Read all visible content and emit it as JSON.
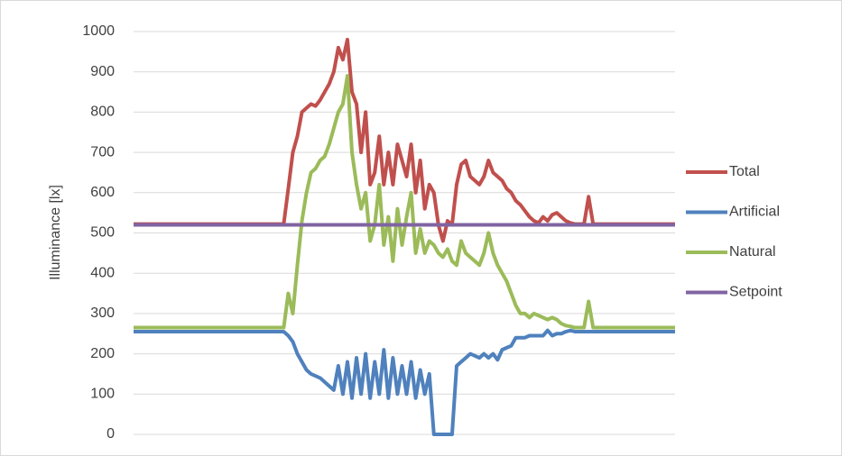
{
  "chart_data": {
    "type": "line",
    "ylabel": "Illuminance [lx]",
    "ylim": [
      0,
      1000
    ],
    "yticks": [
      0,
      100,
      200,
      300,
      400,
      500,
      600,
      700,
      800,
      900,
      1000
    ],
    "grid": true,
    "legend": "right",
    "categories": [
      null,
      null,
      null,
      null,
      null,
      null,
      null,
      null,
      null,
      null,
      null,
      null,
      null,
      null,
      null,
      null,
      null,
      null,
      null,
      null,
      null,
      null,
      null,
      null,
      null,
      null,
      null,
      null,
      null,
      null,
      null,
      null,
      null,
      null,
      null,
      null,
      null,
      null,
      null,
      null,
      null,
      null,
      null,
      null,
      null,
      null,
      null,
      null,
      null,
      null,
      null,
      null,
      null,
      null,
      null,
      null,
      null,
      null,
      null,
      null,
      null,
      null,
      null,
      null,
      null,
      null,
      null,
      null,
      null,
      null,
      null,
      null,
      null,
      null,
      null,
      null,
      null,
      null,
      null,
      null,
      null,
      null,
      null,
      null,
      null,
      null,
      null,
      null,
      null,
      null,
      null,
      null,
      null,
      null,
      null,
      null,
      null,
      null,
      null,
      null,
      null,
      null,
      null,
      null,
      null,
      null,
      null,
      null,
      null,
      null,
      null,
      null,
      null,
      null,
      null,
      null,
      null,
      null,
      null,
      null
    ],
    "series": [
      {
        "name": "Total",
        "color": "#c0504d",
        "values": [
          522,
          522,
          522,
          522,
          522,
          522,
          522,
          522,
          522,
          522,
          522,
          522,
          522,
          522,
          522,
          522,
          522,
          522,
          522,
          522,
          522,
          522,
          522,
          522,
          522,
          522,
          522,
          522,
          522,
          522,
          522,
          522,
          522,
          522,
          610,
          700,
          740,
          800,
          810,
          820,
          815,
          830,
          850,
          870,
          900,
          960,
          930,
          980,
          850,
          820,
          700,
          800,
          620,
          650,
          740,
          620,
          700,
          620,
          720,
          680,
          640,
          720,
          600,
          680,
          560,
          620,
          600,
          520,
          480,
          530,
          520,
          620,
          670,
          680,
          640,
          630,
          620,
          640,
          680,
          650,
          640,
          630,
          610,
          600,
          580,
          570,
          555,
          540,
          530,
          525,
          540,
          530,
          545,
          550,
          540,
          530,
          525,
          522,
          522,
          522,
          590,
          522,
          522,
          522,
          522,
          522,
          522,
          522,
          522,
          522,
          522,
          522,
          522,
          522,
          522,
          522,
          522,
          522,
          522,
          522
        ]
      },
      {
        "name": "Artificial",
        "color": "#4f81bd",
        "values": [
          255,
          255,
          255,
          255,
          255,
          255,
          255,
          255,
          255,
          255,
          255,
          255,
          255,
          255,
          255,
          255,
          255,
          255,
          255,
          255,
          255,
          255,
          255,
          255,
          255,
          255,
          255,
          255,
          255,
          255,
          255,
          255,
          255,
          255,
          245,
          230,
          200,
          180,
          160,
          150,
          145,
          140,
          130,
          120,
          110,
          170,
          100,
          180,
          90,
          190,
          100,
          200,
          90,
          180,
          100,
          210,
          90,
          190,
          100,
          170,
          100,
          180,
          90,
          160,
          100,
          150,
          0,
          0,
          0,
          0,
          0,
          170,
          180,
          190,
          200,
          195,
          190,
          200,
          190,
          200,
          185,
          210,
          215,
          220,
          240,
          240,
          240,
          245,
          245,
          245,
          245,
          258,
          245,
          250,
          250,
          255,
          258,
          255,
          255,
          255,
          255,
          255,
          255,
          255,
          255,
          255,
          255,
          255,
          255,
          255,
          255,
          255,
          255,
          255,
          255,
          255,
          255,
          255,
          255,
          255
        ]
      },
      {
        "name": "Natural",
        "color": "#9bbb59",
        "values": [
          265,
          265,
          265,
          265,
          265,
          265,
          265,
          265,
          265,
          265,
          265,
          265,
          265,
          265,
          265,
          265,
          265,
          265,
          265,
          265,
          265,
          265,
          265,
          265,
          265,
          265,
          265,
          265,
          265,
          265,
          265,
          265,
          265,
          265,
          350,
          300,
          420,
          530,
          600,
          650,
          660,
          680,
          690,
          720,
          760,
          800,
          820,
          890,
          700,
          620,
          560,
          600,
          480,
          520,
          620,
          470,
          540,
          430,
          560,
          470,
          540,
          600,
          450,
          510,
          450,
          480,
          470,
          450,
          440,
          460,
          430,
          420,
          480,
          450,
          440,
          430,
          420,
          450,
          500,
          450,
          420,
          400,
          380,
          350,
          320,
          300,
          300,
          290,
          300,
          295,
          290,
          285,
          290,
          285,
          275,
          270,
          268,
          265,
          265,
          265,
          330,
          265,
          265,
          265,
          265,
          265,
          265,
          265,
          265,
          265,
          265,
          265,
          265,
          265,
          265,
          265,
          265,
          265,
          265,
          265
        ]
      },
      {
        "name": "Setpoint",
        "color": "#8064a2",
        "values": [
          520,
          520,
          520,
          520,
          520,
          520,
          520,
          520,
          520,
          520,
          520,
          520,
          520,
          520,
          520,
          520,
          520,
          520,
          520,
          520,
          520,
          520,
          520,
          520,
          520,
          520,
          520,
          520,
          520,
          520,
          520,
          520,
          520,
          520,
          520,
          520,
          520,
          520,
          520,
          520,
          520,
          520,
          520,
          520,
          520,
          520,
          520,
          520,
          520,
          520,
          520,
          520,
          520,
          520,
          520,
          520,
          520,
          520,
          520,
          520,
          520,
          520,
          520,
          520,
          520,
          520,
          520,
          520,
          520,
          520,
          520,
          520,
          520,
          520,
          520,
          520,
          520,
          520,
          520,
          520,
          520,
          520,
          520,
          520,
          520,
          520,
          520,
          520,
          520,
          520,
          520,
          520,
          520,
          520,
          520,
          520,
          520,
          520,
          520,
          520,
          520,
          520,
          520,
          520,
          520,
          520,
          520,
          520,
          520,
          520,
          520,
          520,
          520,
          520,
          520,
          520,
          520,
          520,
          520,
          520
        ]
      }
    ]
  }
}
